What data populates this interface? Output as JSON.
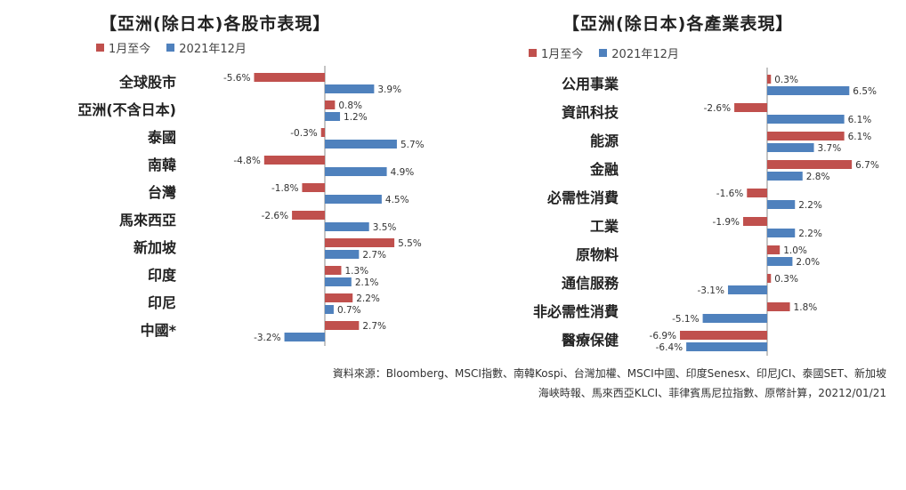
{
  "source_line1": "資料來源：Bloomberg、MSCI指數、南韓Kospi、台灣加權、MSCI中國、印度Senesx、印尼JCI、泰國SET、新加坡",
  "source_line2": "海峽時報、馬來西亞KLCI、菲律賓馬尼拉指數、原幣計算，20212/01/21",
  "chart_data": [
    {
      "type": "bar",
      "orientation": "horizontal",
      "title": "【亞洲(除日本)各股市表現】",
      "legend_position": "top",
      "categories": [
        "全球股市",
        "亞洲(不含日本)",
        "泰國",
        "南韓",
        "台灣",
        "馬來西亞",
        "新加坡",
        "印度",
        "印尼",
        "中國*"
      ],
      "series": [
        {
          "name": "1月至今",
          "color": "#c0504d",
          "values": [
            -5.6,
            0.8,
            -0.3,
            -4.8,
            -1.8,
            -2.6,
            5.5,
            1.3,
            2.2,
            2.7
          ]
        },
        {
          "name": "2021年12月",
          "color": "#4f81bd",
          "values": [
            3.9,
            1.2,
            5.7,
            4.9,
            4.5,
            3.5,
            2.7,
            2.1,
            0.7,
            -3.2
          ]
        }
      ],
      "value_suffix": "%",
      "grid": false
    },
    {
      "type": "bar",
      "orientation": "horizontal",
      "title": "【亞洲(除日本)各產業表現】",
      "legend_position": "top",
      "categories": [
        "公用事業",
        "資訊科技",
        "能源",
        "金融",
        "必需性消費",
        "工業",
        "原物料",
        "通信服務",
        "非必需性消費",
        "醫療保健"
      ],
      "series": [
        {
          "name": "1月至今",
          "color": "#c0504d",
          "values": [
            0.3,
            -2.6,
            6.1,
            6.7,
            -1.6,
            -1.9,
            1.0,
            0.3,
            1.8,
            -6.9
          ]
        },
        {
          "name": "2021年12月",
          "color": "#4f81bd",
          "values": [
            6.5,
            6.1,
            3.7,
            2.8,
            2.2,
            2.2,
            2.0,
            -3.1,
            -5.1,
            -6.4
          ]
        }
      ],
      "value_suffix": "%",
      "grid": false
    }
  ]
}
